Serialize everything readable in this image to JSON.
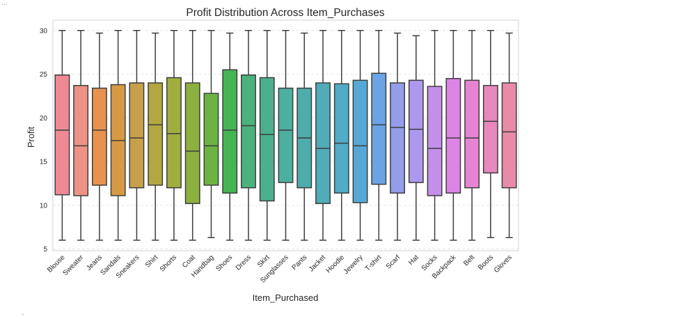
{
  "window": {
    "corner_mark": "...",
    "scroll_mark": "‹"
  },
  "chart_data": {
    "type": "box",
    "title": "Profit Distribution Across Item_Purchases",
    "xlabel": "Item_Purchased",
    "ylabel": "Profit",
    "ylim": [
      4.8,
      30.8
    ],
    "yticks": [
      5,
      10,
      15,
      20,
      25,
      30
    ],
    "grid": true,
    "categories": [
      {
        "name": "Blouse",
        "min": 6.0,
        "q1": 11.2,
        "median": 18.6,
        "q3": 24.9,
        "max": 30.0,
        "color": "#ef8a95"
      },
      {
        "name": "Sweater",
        "min": 6.0,
        "q1": 11.1,
        "median": 16.8,
        "q3": 23.7,
        "max": 30.0,
        "color": "#ee9186"
      },
      {
        "name": "Jeans",
        "min": 6.0,
        "q1": 12.3,
        "median": 18.6,
        "q3": 23.4,
        "max": 29.7,
        "color": "#e9924f"
      },
      {
        "name": "Sandals",
        "min": 6.0,
        "q1": 11.1,
        "median": 17.4,
        "q3": 23.8,
        "max": 30.0,
        "color": "#d79a44"
      },
      {
        "name": "Sneakers",
        "min": 6.0,
        "q1": 12.0,
        "median": 17.7,
        "q3": 24.0,
        "max": 30.0,
        "color": "#c7a04a"
      },
      {
        "name": "Shirt",
        "min": 6.0,
        "q1": 12.3,
        "median": 19.2,
        "q3": 24.0,
        "max": 29.7,
        "color": "#b4a741"
      },
      {
        "name": "Shorts",
        "min": 6.0,
        "q1": 12.0,
        "median": 18.2,
        "q3": 24.6,
        "max": 30.0,
        "color": "#a0ae3f"
      },
      {
        "name": "Coat",
        "min": 6.0,
        "q1": 10.2,
        "median": 16.2,
        "q3": 24.0,
        "max": 30.0,
        "color": "#8db13e"
      },
      {
        "name": "Handbag",
        "min": 6.3,
        "q1": 12.3,
        "median": 16.8,
        "q3": 22.8,
        "max": 30.0,
        "color": "#6db342"
      },
      {
        "name": "Shoes",
        "min": 6.0,
        "q1": 11.4,
        "median": 18.6,
        "q3": 25.5,
        "max": 29.7,
        "color": "#45b554"
      },
      {
        "name": "Dress",
        "min": 6.0,
        "q1": 12.0,
        "median": 19.1,
        "q3": 24.9,
        "max": 30.0,
        "color": "#4ab27a"
      },
      {
        "name": "Skirt",
        "min": 6.0,
        "q1": 10.5,
        "median": 18.1,
        "q3": 24.6,
        "max": 30.0,
        "color": "#4cb08f"
      },
      {
        "name": "Sunglasses",
        "min": 6.0,
        "q1": 12.6,
        "median": 18.6,
        "q3": 23.4,
        "max": 30.0,
        "color": "#4daf9e"
      },
      {
        "name": "Pants",
        "min": 6.0,
        "q1": 12.0,
        "median": 17.7,
        "q3": 23.4,
        "max": 29.7,
        "color": "#4eadab"
      },
      {
        "name": "Jacket",
        "min": 6.0,
        "q1": 10.2,
        "median": 16.5,
        "q3": 24.0,
        "max": 30.0,
        "color": "#50acb9"
      },
      {
        "name": "Hoodie",
        "min": 6.0,
        "q1": 11.4,
        "median": 17.1,
        "q3": 23.9,
        "max": 30.0,
        "color": "#52abc7"
      },
      {
        "name": "Jewelry",
        "min": 6.0,
        "q1": 10.3,
        "median": 16.8,
        "q3": 24.3,
        "max": 30.0,
        "color": "#56a8d6"
      },
      {
        "name": "T-shirt",
        "min": 6.0,
        "q1": 12.4,
        "median": 19.2,
        "q3": 25.1,
        "max": 30.0,
        "color": "#6ba3e5"
      },
      {
        "name": "Scarf",
        "min": 6.0,
        "q1": 11.4,
        "median": 18.9,
        "q3": 24.0,
        "max": 29.7,
        "color": "#939dea"
      },
      {
        "name": "Hat",
        "min": 6.0,
        "q1": 12.6,
        "median": 18.7,
        "q3": 24.3,
        "max": 29.4,
        "color": "#ac98ec"
      },
      {
        "name": "Socks",
        "min": 6.0,
        "q1": 11.1,
        "median": 16.5,
        "q3": 23.6,
        "max": 30.0,
        "color": "#c48fea"
      },
      {
        "name": "Backpack",
        "min": 6.0,
        "q1": 11.4,
        "median": 17.7,
        "q3": 24.5,
        "max": 30.0,
        "color": "#dd84e6"
      },
      {
        "name": "Belt",
        "min": 6.0,
        "q1": 12.0,
        "median": 17.7,
        "q3": 24.3,
        "max": 30.0,
        "color": "#e684d3"
      },
      {
        "name": "Boots",
        "min": 6.3,
        "q1": 13.7,
        "median": 19.6,
        "q3": 23.7,
        "max": 30.0,
        "color": "#e888bd"
      },
      {
        "name": "Gloves",
        "min": 6.3,
        "q1": 12.0,
        "median": 18.4,
        "q3": 24.0,
        "max": 29.7,
        "color": "#e98aa8"
      }
    ]
  }
}
